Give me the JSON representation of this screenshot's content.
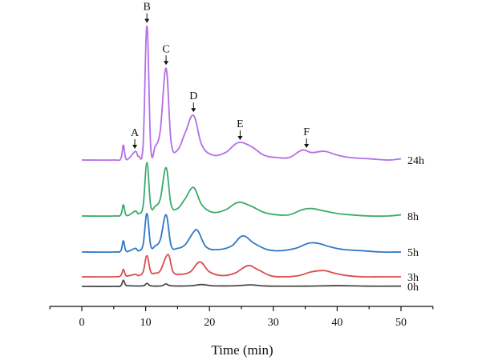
{
  "chart_data": {
    "type": "line",
    "title": "",
    "xlabel": "Time (min)",
    "ylabel": "",
    "xlim": [
      -5,
      55
    ],
    "xticks": [
      0,
      10,
      20,
      30,
      40,
      50
    ],
    "grid": false,
    "legend": "none",
    "series": [
      {
        "name": "24h",
        "color": "#b46ee6",
        "x": [
          0,
          5,
          6.1,
          6.5,
          6.9,
          7.5,
          8.4,
          8.9,
          9.6,
          10.2,
          10.8,
          11.5,
          12.3,
          13.2,
          14.0,
          15.0,
          16.2,
          17.5,
          18.8,
          20.5,
          22.5,
          24.5,
          26.5,
          28.5,
          30.5,
          32.5,
          34.5,
          36.0,
          38.0,
          40.0,
          42.0,
          45.0,
          48.0,
          50.0
        ],
        "y": [
          0.0,
          0.0,
          0.1,
          1.2,
          0.1,
          0.2,
          0.7,
          0.3,
          1.2,
          10.8,
          1.0,
          1.1,
          2.4,
          7.4,
          1.4,
          0.8,
          2.2,
          3.6,
          1.2,
          0.4,
          0.6,
          1.4,
          1.1,
          0.4,
          0.2,
          0.2,
          0.8,
          0.6,
          0.7,
          0.4,
          0.2,
          0.1,
          0.0,
          0.1
        ]
      },
      {
        "name": "8h",
        "color": "#3aab6d",
        "x": [
          0,
          5,
          6.1,
          6.5,
          6.9,
          7.5,
          8.4,
          8.9,
          9.6,
          10.2,
          10.8,
          11.5,
          12.3,
          13.2,
          14.0,
          15.0,
          16.2,
          17.5,
          18.8,
          20.5,
          22.5,
          24.5,
          26.5,
          28.5,
          30.5,
          32.5,
          34.5,
          36.0,
          38.0,
          40.0,
          42.0,
          45.0,
          48.0,
          50.0
        ],
        "y": [
          0.0,
          0.0,
          0.1,
          0.9,
          0.1,
          0.1,
          0.4,
          0.2,
          0.8,
          4.3,
          0.8,
          0.8,
          1.4,
          3.9,
          0.9,
          0.6,
          1.4,
          2.3,
          0.9,
          0.3,
          0.5,
          1.1,
          0.8,
          0.3,
          0.1,
          0.1,
          0.5,
          0.6,
          0.4,
          0.2,
          0.1,
          0.0,
          0.0,
          0.1
        ]
      },
      {
        "name": "5h",
        "color": "#2e78c8",
        "x": [
          0,
          5,
          6.1,
          6.5,
          6.9,
          7.5,
          8.4,
          8.9,
          9.6,
          10.2,
          10.8,
          11.5,
          12.3,
          13.2,
          14.0,
          15.0,
          16.2,
          17.5,
          18.2,
          19.5,
          21.5,
          23.5,
          25.2,
          27.0,
          29.0,
          31.0,
          33.5,
          35.5,
          37.0,
          39.0,
          41.0,
          44.0,
          47.0,
          50.0
        ],
        "y": [
          0.0,
          0.0,
          0.1,
          0.9,
          0.1,
          0.1,
          0.3,
          0.1,
          0.6,
          3.1,
          0.5,
          0.5,
          1.0,
          3.0,
          0.5,
          0.3,
          0.6,
          1.6,
          1.7,
          0.4,
          0.2,
          0.5,
          1.3,
          0.7,
          0.2,
          0.1,
          0.3,
          0.7,
          0.7,
          0.4,
          0.2,
          0.1,
          0.0,
          0.0
        ]
      },
      {
        "name": "3h",
        "color": "#dc4c4c",
        "x": [
          0,
          5,
          6.1,
          6.5,
          6.9,
          7.5,
          8.4,
          8.9,
          9.6,
          10.2,
          10.8,
          11.5,
          12.3,
          13.5,
          14.3,
          15.5,
          17.0,
          18.5,
          20.0,
          22.0,
          24.0,
          26.0,
          27.5,
          29.5,
          31.5,
          34.0,
          36.0,
          38.0,
          39.5,
          41.5,
          44.0,
          47.0,
          50.0
        ],
        "y": [
          0.0,
          0.0,
          0.1,
          0.6,
          0.1,
          0.1,
          0.2,
          0.1,
          0.4,
          1.7,
          0.4,
          0.3,
          0.5,
          1.8,
          0.4,
          0.2,
          0.4,
          1.2,
          0.4,
          0.1,
          0.3,
          0.9,
          0.6,
          0.1,
          0.0,
          0.1,
          0.4,
          0.5,
          0.3,
          0.1,
          0.0,
          0.0,
          0.0
        ]
      },
      {
        "name": "0h",
        "color": "#4a4a4a",
        "x": [
          0,
          5,
          6.1,
          6.5,
          6.9,
          7.5,
          9.6,
          10.2,
          10.8,
          12.5,
          13.2,
          14.0,
          17.0,
          18.8,
          20.5,
          24.0,
          26.5,
          29.0,
          35.0,
          40.0,
          45.0,
          50.0
        ],
        "y": [
          0.0,
          0.0,
          0.05,
          0.5,
          0.1,
          0.05,
          0.05,
          0.25,
          0.05,
          0.05,
          0.2,
          0.05,
          0.05,
          0.15,
          0.05,
          0.05,
          0.12,
          0.03,
          0.02,
          0.06,
          0.02,
          0.02
        ]
      }
    ],
    "peaks": [
      {
        "label": "A",
        "x": 8.3
      },
      {
        "label": "B",
        "x": 10.2
      },
      {
        "label": "C",
        "x": 13.2
      },
      {
        "label": "D",
        "x": 17.5
      },
      {
        "label": "E",
        "x": 24.8
      },
      {
        "label": "F",
        "x": 35.2
      }
    ]
  }
}
